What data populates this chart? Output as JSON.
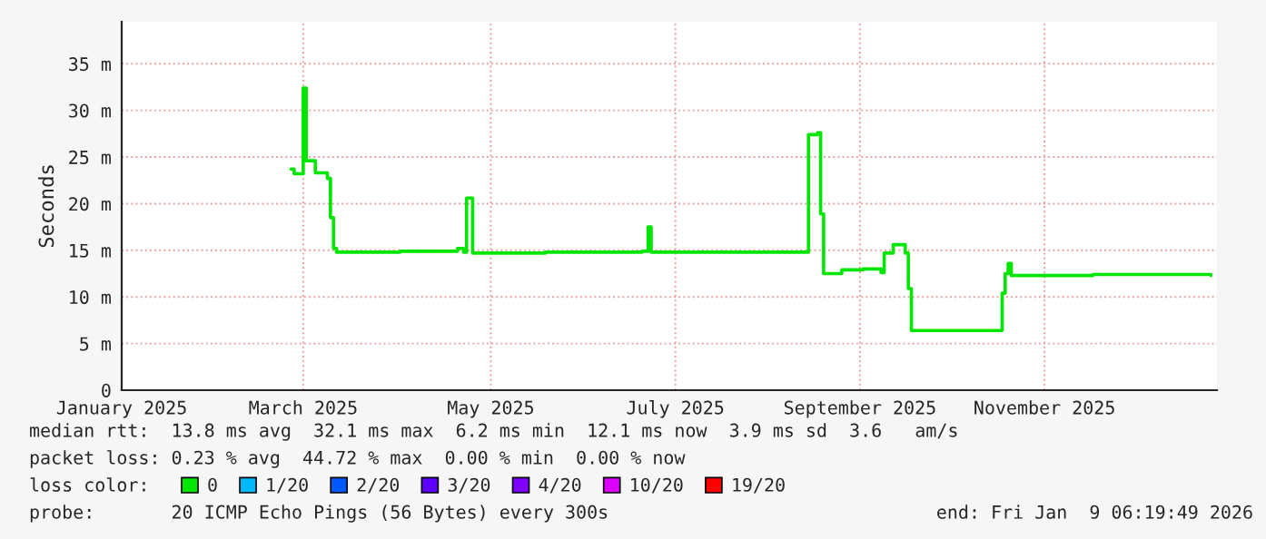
{
  "chart_data": {
    "type": "step",
    "ylabel": "Seconds",
    "legend_title": "loss color:",
    "legend": "bottom",
    "grid": true,
    "xlim": [
      "2025-01-14",
      "2026-01-11"
    ],
    "xticks": [
      {
        "value": "2025-01-14",
        "label": "January 2025"
      },
      {
        "value": "2025-03-15",
        "label": "March 2025"
      },
      {
        "value": "2025-05-16",
        "label": "May 2025"
      },
      {
        "value": "2025-07-16",
        "label": "July 2025"
      },
      {
        "value": "2025-09-15",
        "label": "September 2025"
      },
      {
        "value": "2025-11-15",
        "label": "November 2025"
      }
    ],
    "ylim": [
      0,
      39.5
    ],
    "yticks": [
      0,
      {
        "value": 5,
        "label": "5 m"
      },
      {
        "value": 10,
        "label": "10 m"
      },
      {
        "value": 15,
        "label": "15 m"
      },
      {
        "value": 20,
        "label": "20 m"
      },
      {
        "value": 25,
        "label": "25 m"
      },
      {
        "value": 30,
        "label": "30 m"
      },
      {
        "value": 35,
        "label": "35 m"
      }
    ],
    "x": [
      "2025-03-11",
      "2025-03-12",
      "2025-03-14",
      "2025-03-15",
      "2025-03-16",
      "2025-03-19",
      "2025-03-23",
      "2025-03-24",
      "2025-03-25",
      "2025-03-26",
      "2025-04-16",
      "2025-05-05",
      "2025-05-07",
      "2025-05-08",
      "2025-05-10",
      "2025-06-03",
      "2025-07-05",
      "2025-07-07",
      "2025-07-08",
      "2025-08-02",
      "2025-08-28",
      "2025-08-29",
      "2025-09-01",
      "2025-09-02",
      "2025-09-03",
      "2025-09-09",
      "2025-09-16",
      "2025-09-22",
      "2025-09-23",
      "2025-09-26",
      "2025-09-30",
      "2025-10-01",
      "2025-10-02",
      "2025-10-20",
      "2025-10-31",
      "2025-11-01",
      "2025-11-02",
      "2025-11-03",
      "2025-11-04",
      "2025-12-01",
      "2026-01-09"
    ],
    "series": [
      {
        "name": "0",
        "color": "#00e600",
        "values": [
          23.7,
          23.2,
          23.2,
          32.4,
          24.6,
          23.3,
          22.7,
          18.5,
          15.2,
          14.8,
          14.9,
          15.2,
          14.8,
          20.6,
          14.7,
          14.8,
          14.9,
          17.5,
          14.8,
          14.8,
          14.8,
          27.4,
          27.6,
          18.9,
          12.5,
          12.9,
          13.0,
          12.6,
          14.7,
          15.6,
          14.7,
          10.9,
          6.4,
          6.4,
          6.4,
          10.4,
          12.5,
          13.6,
          12.3,
          12.4,
          12.3
        ]
      },
      {
        "name": "1/20",
        "color": "#00b8ff",
        "values": [
          null,
          null,
          null,
          null,
          null,
          null,
          null,
          null,
          null,
          null,
          null,
          null,
          null,
          null,
          null,
          null,
          null,
          null,
          null,
          null,
          null,
          null,
          null,
          null,
          null,
          null,
          null,
          null,
          null,
          null,
          null,
          null,
          null,
          null,
          null,
          null,
          null,
          null,
          null,
          null,
          null
        ]
      },
      {
        "name": "2/20",
        "color": "#0059ff",
        "values": [
          null,
          null,
          null,
          null,
          null,
          null,
          null,
          null,
          null,
          null,
          null,
          null,
          null,
          null,
          null,
          null,
          null,
          null,
          null,
          null,
          null,
          null,
          null,
          null,
          null,
          null,
          null,
          null,
          null,
          null,
          null,
          null,
          null,
          null,
          null,
          null,
          null,
          null,
          null,
          null,
          null
        ]
      },
      {
        "name": "3/20",
        "color": "#5e00ff",
        "values": [
          null,
          null,
          null,
          null,
          null,
          null,
          null,
          null,
          null,
          null,
          null,
          null,
          null,
          null,
          null,
          null,
          null,
          null,
          null,
          null,
          null,
          null,
          null,
          null,
          null,
          null,
          null,
          null,
          null,
          null,
          null,
          null,
          null,
          null,
          null,
          null,
          null,
          null,
          null,
          null,
          null
        ]
      },
      {
        "name": "4/20",
        "color": "#7e00ff",
        "values": [
          null,
          null,
          null,
          null,
          null,
          null,
          null,
          null,
          null,
          null,
          null,
          null,
          null,
          null,
          null,
          null,
          null,
          null,
          null,
          null,
          null,
          null,
          null,
          null,
          null,
          null,
          null,
          null,
          null,
          null,
          null,
          null,
          null,
          null,
          null,
          null,
          null,
          null,
          null,
          null,
          null
        ]
      },
      {
        "name": "10/20",
        "color": "#dd00ff",
        "values": [
          null,
          null,
          null,
          null,
          null,
          null,
          null,
          null,
          null,
          null,
          null,
          null,
          null,
          null,
          null,
          null,
          null,
          null,
          null,
          null,
          null,
          null,
          null,
          null,
          null,
          null,
          null,
          null,
          null,
          null,
          null,
          null,
          null,
          null,
          null,
          null,
          null,
          null,
          null,
          null,
          null
        ]
      },
      {
        "name": "19/20",
        "color": "#ff0000",
        "values": [
          null,
          null,
          null,
          null,
          null,
          null,
          null,
          null,
          null,
          null,
          null,
          null,
          null,
          null,
          null,
          null,
          null,
          null,
          null,
          null,
          null,
          null,
          null,
          null,
          null,
          null,
          null,
          null,
          null,
          null,
          null,
          null,
          null,
          null,
          null,
          null,
          null,
          null,
          null,
          null,
          null
        ]
      }
    ],
    "annotations": [
      "median rtt:  13.8 ms avg  32.1 ms max  6.2 ms min  12.1 ms now  3.9 ms sd  3.6   am/s",
      "packet loss: 0.23 % avg  44.72 % max  0.00 % min  0.00 % now",
      "probe:       20 ICMP Echo Pings (56 Bytes) every 300s",
      "end: Fri Jan  9 06:19:49 2026"
    ]
  }
}
